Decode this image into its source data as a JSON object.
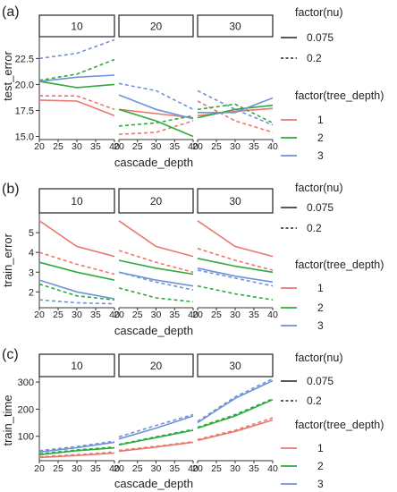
{
  "x_label": "cascade_depth",
  "x_ticks": [
    "20",
    "25",
    "30",
    "35",
    "40"
  ],
  "legend_nu_title": "factor(nu)",
  "legend_nu": [
    {
      "label": "0.075",
      "dash": "solid"
    },
    {
      "label": "0.2",
      "dash": "dashed"
    }
  ],
  "legend_depth_title": "factor(tree_depth)",
  "legend_depth": [
    {
      "label": "1",
      "color": "#e8786e"
    },
    {
      "label": "2",
      "color": "#2eaa3c"
    },
    {
      "label": "3",
      "color": "#6f93d6"
    }
  ],
  "colors": {
    "1": "#e8786e",
    "2": "#2eaa3c",
    "3": "#6f93d6"
  },
  "facets": [
    "10",
    "20",
    "30"
  ],
  "chart_data": [
    {
      "type": "line",
      "panel_label": "(a)",
      "ylabel": "test_error",
      "yticks": [
        15.0,
        17.5,
        20.0,
        22.5
      ],
      "ytick_labels": [
        "15.0",
        "17.5",
        "20.0",
        "22.5"
      ],
      "ylim": [
        14.7,
        24.6
      ],
      "x": [
        20,
        30,
        40
      ],
      "series": [
        {
          "facet": "10",
          "tree_depth": "1",
          "nu": "0.075",
          "values": [
            18.5,
            18.4,
            17.0
          ]
        },
        {
          "facet": "10",
          "tree_depth": "1",
          "nu": "0.2",
          "values": [
            18.9,
            18.9,
            17.6
          ]
        },
        {
          "facet": "10",
          "tree_depth": "2",
          "nu": "0.075",
          "values": [
            20.3,
            19.7,
            20.0
          ]
        },
        {
          "facet": "10",
          "tree_depth": "2",
          "nu": "0.2",
          "values": [
            20.4,
            21.0,
            22.4
          ]
        },
        {
          "facet": "10",
          "tree_depth": "3",
          "nu": "0.075",
          "values": [
            20.3,
            20.7,
            20.9
          ]
        },
        {
          "facet": "10",
          "tree_depth": "3",
          "nu": "0.2",
          "values": [
            22.5,
            23.0,
            24.3
          ]
        },
        {
          "facet": "20",
          "tree_depth": "1",
          "nu": "0.075",
          "values": [
            17.6,
            17.2,
            16.8
          ]
        },
        {
          "facet": "20",
          "tree_depth": "1",
          "nu": "0.2",
          "values": [
            15.2,
            15.4,
            16.5
          ]
        },
        {
          "facet": "20",
          "tree_depth": "2",
          "nu": "0.075",
          "values": [
            17.6,
            16.5,
            15.0
          ]
        },
        {
          "facet": "20",
          "tree_depth": "2",
          "nu": "0.2",
          "values": [
            16.0,
            16.3,
            17.0
          ]
        },
        {
          "facet": "20",
          "tree_depth": "3",
          "nu": "0.075",
          "values": [
            19.0,
            17.6,
            16.7
          ]
        },
        {
          "facet": "20",
          "tree_depth": "3",
          "nu": "0.2",
          "values": [
            20.1,
            19.4,
            17.6
          ]
        },
        {
          "facet": "30",
          "tree_depth": "1",
          "nu": "0.075",
          "values": [
            17.0,
            17.4,
            17.7
          ]
        },
        {
          "facet": "30",
          "tree_depth": "1",
          "nu": "0.2",
          "values": [
            18.4,
            16.5,
            15.4
          ]
        },
        {
          "facet": "30",
          "tree_depth": "2",
          "nu": "0.075",
          "values": [
            16.8,
            17.6,
            18.0
          ]
        },
        {
          "facet": "30",
          "tree_depth": "2",
          "nu": "0.2",
          "values": [
            17.6,
            18.1,
            16.3
          ]
        },
        {
          "facet": "30",
          "tree_depth": "3",
          "nu": "0.075",
          "values": [
            17.3,
            17.3,
            18.7
          ]
        },
        {
          "facet": "30",
          "tree_depth": "3",
          "nu": "0.2",
          "values": [
            19.4,
            17.6,
            16.1
          ]
        }
      ]
    },
    {
      "type": "line",
      "panel_label": "(b)",
      "ylabel": "train_error",
      "yticks": [
        2,
        3,
        4,
        5
      ],
      "ytick_labels": [
        "2",
        "3",
        "4",
        "5"
      ],
      "ylim": [
        1.2,
        6.0
      ],
      "x": [
        20,
        30,
        40
      ],
      "series": [
        {
          "facet": "10",
          "tree_depth": "1",
          "nu": "0.075",
          "values": [
            5.6,
            4.3,
            3.8
          ]
        },
        {
          "facet": "10",
          "tree_depth": "1",
          "nu": "0.2",
          "values": [
            4.0,
            3.4,
            2.9
          ]
        },
        {
          "facet": "10",
          "tree_depth": "2",
          "nu": "0.075",
          "values": [
            3.5,
            3.0,
            2.6
          ]
        },
        {
          "facet": "10",
          "tree_depth": "2",
          "nu": "0.2",
          "values": [
            2.4,
            1.8,
            1.6
          ]
        },
        {
          "facet": "10",
          "tree_depth": "3",
          "nu": "0.075",
          "values": [
            2.6,
            2.0,
            1.65
          ]
        },
        {
          "facet": "10",
          "tree_depth": "3",
          "nu": "0.2",
          "values": [
            1.6,
            1.45,
            1.4
          ]
        },
        {
          "facet": "20",
          "tree_depth": "1",
          "nu": "0.075",
          "values": [
            5.6,
            4.3,
            3.8
          ]
        },
        {
          "facet": "20",
          "tree_depth": "1",
          "nu": "0.2",
          "values": [
            4.1,
            3.5,
            3.0
          ]
        },
        {
          "facet": "20",
          "tree_depth": "2",
          "nu": "0.075",
          "values": [
            3.6,
            3.2,
            2.9
          ]
        },
        {
          "facet": "20",
          "tree_depth": "2",
          "nu": "0.2",
          "values": [
            2.2,
            1.7,
            1.5
          ]
        },
        {
          "facet": "20",
          "tree_depth": "3",
          "nu": "0.075",
          "values": [
            3.0,
            2.6,
            2.3
          ]
        },
        {
          "facet": "20",
          "tree_depth": "3",
          "nu": "0.2",
          "values": [
            3.0,
            2.5,
            2.1
          ]
        },
        {
          "facet": "30",
          "tree_depth": "1",
          "nu": "0.075",
          "values": [
            5.6,
            4.3,
            3.8
          ]
        },
        {
          "facet": "30",
          "tree_depth": "1",
          "nu": "0.2",
          "values": [
            4.2,
            3.6,
            3.1
          ]
        },
        {
          "facet": "30",
          "tree_depth": "2",
          "nu": "0.075",
          "values": [
            3.7,
            3.3,
            3.0
          ]
        },
        {
          "facet": "30",
          "tree_depth": "2",
          "nu": "0.2",
          "values": [
            2.3,
            1.9,
            1.6
          ]
        },
        {
          "facet": "30",
          "tree_depth": "3",
          "nu": "0.075",
          "values": [
            3.2,
            2.8,
            2.5
          ]
        },
        {
          "facet": "30",
          "tree_depth": "3",
          "nu": "0.2",
          "values": [
            3.1,
            2.7,
            2.3
          ]
        }
      ]
    },
    {
      "type": "line",
      "panel_label": "(c)",
      "ylabel": "train_time",
      "yticks": [
        100,
        200,
        300
      ],
      "ytick_labels": [
        "100",
        "200",
        "300"
      ],
      "ylim": [
        10,
        320
      ],
      "x": [
        20,
        30,
        40
      ],
      "series": [
        {
          "facet": "10",
          "tree_depth": "1",
          "nu": "0.075",
          "values": [
            22,
            29,
            38
          ]
        },
        {
          "facet": "10",
          "tree_depth": "1",
          "nu": "0.2",
          "values": [
            24,
            32,
            42
          ]
        },
        {
          "facet": "10",
          "tree_depth": "2",
          "nu": "0.075",
          "values": [
            32,
            47,
            57
          ]
        },
        {
          "facet": "10",
          "tree_depth": "2",
          "nu": "0.2",
          "values": [
            35,
            50,
            60
          ]
        },
        {
          "facet": "10",
          "tree_depth": "3",
          "nu": "0.075",
          "values": [
            42,
            58,
            78
          ]
        },
        {
          "facet": "10",
          "tree_depth": "3",
          "nu": "0.2",
          "values": [
            47,
            62,
            82
          ]
        },
        {
          "facet": "20",
          "tree_depth": "1",
          "nu": "0.075",
          "values": [
            45,
            60,
            78
          ]
        },
        {
          "facet": "20",
          "tree_depth": "1",
          "nu": "0.2",
          "values": [
            48,
            63,
            80
          ]
        },
        {
          "facet": "20",
          "tree_depth": "2",
          "nu": "0.075",
          "values": [
            68,
            95,
            122
          ]
        },
        {
          "facet": "20",
          "tree_depth": "2",
          "nu": "0.2",
          "values": [
            70,
            98,
            125
          ]
        },
        {
          "facet": "20",
          "tree_depth": "3",
          "nu": "0.075",
          "values": [
            90,
            130,
            175
          ]
        },
        {
          "facet": "20",
          "tree_depth": "3",
          "nu": "0.2",
          "values": [
            98,
            140,
            180
          ]
        },
        {
          "facet": "30",
          "tree_depth": "1",
          "nu": "0.075",
          "values": [
            85,
            118,
            160
          ]
        },
        {
          "facet": "30",
          "tree_depth": "1",
          "nu": "0.2",
          "values": [
            88,
            122,
            168
          ]
        },
        {
          "facet": "30",
          "tree_depth": "2",
          "nu": "0.075",
          "values": [
            130,
            175,
            235
          ]
        },
        {
          "facet": "30",
          "tree_depth": "2",
          "nu": "0.2",
          "values": [
            133,
            180,
            238
          ]
        },
        {
          "facet": "30",
          "tree_depth": "3",
          "nu": "0.075",
          "values": [
            150,
            240,
            305
          ]
        },
        {
          "facet": "30",
          "tree_depth": "3",
          "nu": "0.2",
          "values": [
            155,
            245,
            312
          ]
        }
      ]
    }
  ]
}
